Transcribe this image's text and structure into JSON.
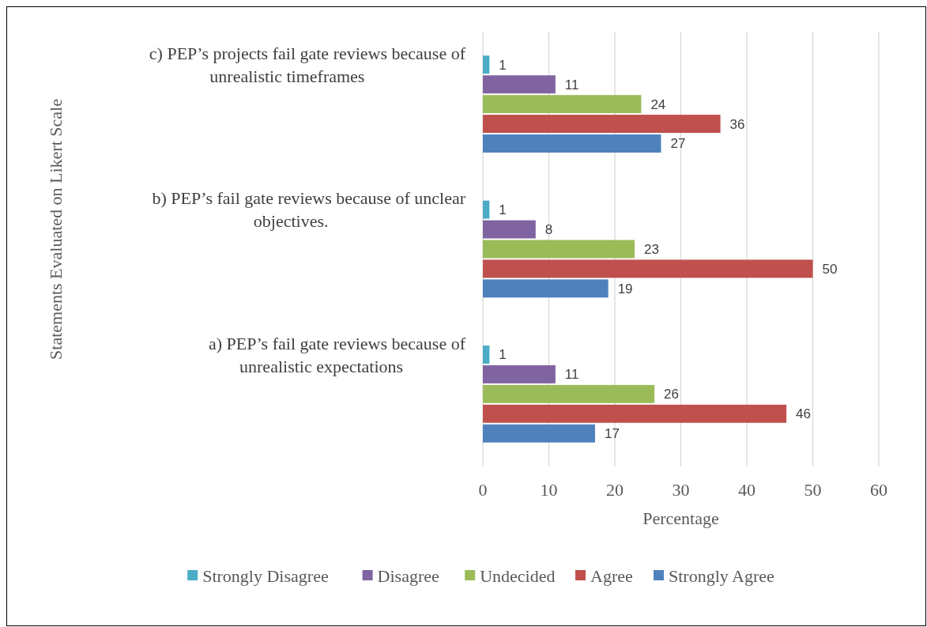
{
  "chart_data": {
    "type": "bar",
    "orientation": "horizontal",
    "ylabel": "Statements Evaluated on Likert Scale",
    "xlabel": "Percentage",
    "categories": [
      "c)  PEP’s projects fail gate reviews because of unrealistic timeframes",
      "b)  PEP’s fail gate reviews because of unclear objectives.",
      "a)  PEP’s fail gate reviews because of unrealistic expectations"
    ],
    "series": [
      {
        "name": "Strongly Disagree",
        "color": "#4bacc6",
        "values": [
          1,
          1,
          1
        ]
      },
      {
        "name": "Disagree",
        "color": "#8064a2",
        "values": [
          11,
          8,
          11
        ]
      },
      {
        "name": "Undecided",
        "color": "#9bbb59",
        "values": [
          24,
          23,
          26
        ]
      },
      {
        "name": "Agree",
        "color": "#c0504d",
        "values": [
          36,
          50,
          46
        ]
      },
      {
        "name": "Strongly Agree",
        "color": "#4f81bd",
        "values": [
          27,
          19,
          17
        ]
      }
    ],
    "xlim": [
      0,
      60
    ],
    "xticks": [
      0,
      10,
      20,
      30,
      40,
      50,
      60
    ],
    "grid": "x",
    "legend": "bottom",
    "data_labels": true
  }
}
